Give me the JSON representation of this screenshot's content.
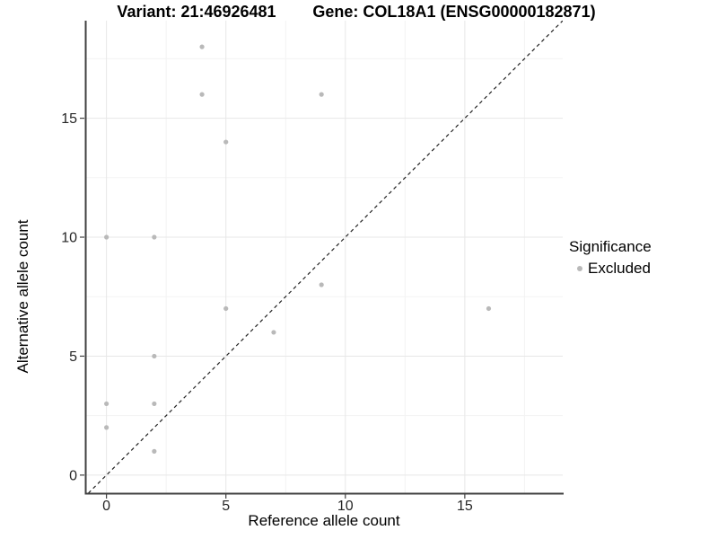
{
  "header": {
    "variant_title": "Variant: 21:46926481",
    "gene_title": "Gene: COL18A1 (ENSG00000182871)"
  },
  "chart_data": {
    "type": "scatter",
    "xlabel": "Reference allele count",
    "ylabel": "Alternative allele count",
    "xlim": [
      -0.85,
      19.1
    ],
    "ylim": [
      -0.76,
      19.1
    ],
    "xticks": [
      0,
      5,
      10,
      15
    ],
    "yticks": [
      0,
      5,
      10,
      15
    ],
    "minor_ticks": [
      2.5,
      7.5,
      12.5,
      17.5
    ],
    "grid": true,
    "identity_line": {
      "style": "dashed",
      "slope": 1,
      "intercept": 0
    },
    "series": [
      {
        "name": "Excluded",
        "color": "#b9b9b9",
        "points": [
          [
            0,
            2
          ],
          [
            0,
            3
          ],
          [
            0,
            10
          ],
          [
            2,
            1
          ],
          [
            2,
            3
          ],
          [
            2,
            5
          ],
          [
            2,
            10
          ],
          [
            4,
            16
          ],
          [
            4,
            18
          ],
          [
            5,
            7
          ],
          [
            5,
            14
          ],
          [
            7,
            6
          ],
          [
            9,
            8
          ],
          [
            9,
            16
          ],
          [
            16,
            7
          ]
        ]
      }
    ],
    "legend": {
      "title": "Significance",
      "position": "right",
      "entries": [
        {
          "label": "Excluded",
          "color": "#b9b9b9"
        }
      ]
    }
  },
  "colors": {
    "background": "#ffffff",
    "major_grid": "#e7e7e7",
    "minor_grid": "#f3f3f3",
    "axis_line": "#404040",
    "tick_label": "#262626",
    "dashed_line": "#222222"
  }
}
